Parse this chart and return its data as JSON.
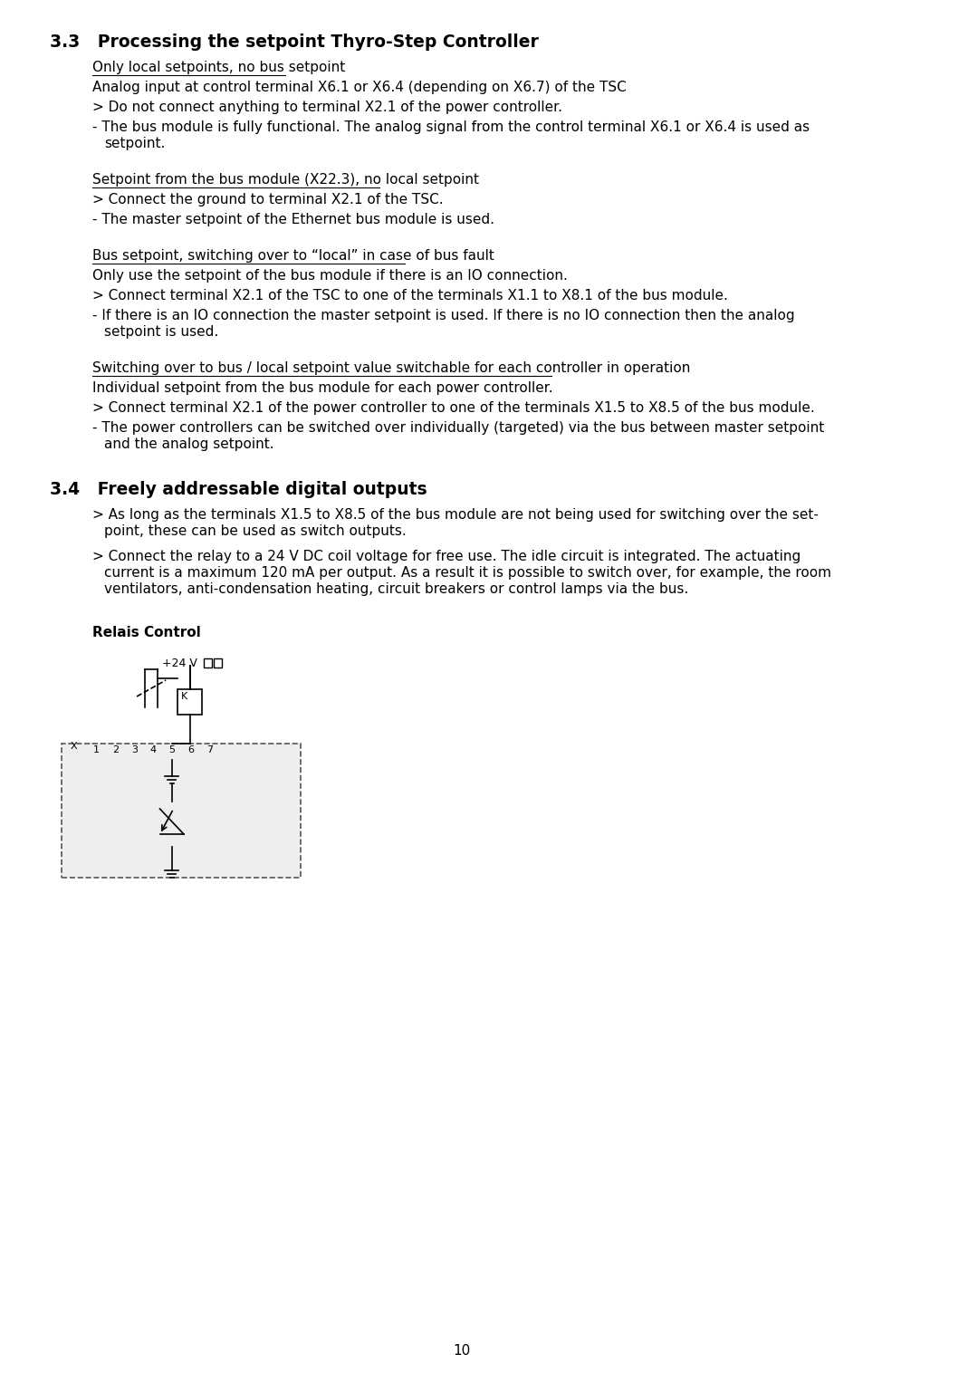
{
  "bg_color": "#ffffff",
  "page_number": "10",
  "section_33_title": "3.3   Processing the setpoint Thyro-Step Controller",
  "section_33_blocks": [
    {
      "heading": "Only local setpoints, no bus setpoint",
      "lines": [
        {
          "type": "plain",
          "text": "Analog input at control terminal X6.1 or X6.4 (depending on X6.7) of the TSC"
        },
        {
          "type": "gt",
          "text": "> Do not connect anything to terminal X2.1 of the power controller."
        },
        {
          "type": "dash",
          "text": "- The bus module is fully functional. The analog signal from the control terminal X6.1 or X6.4 is used as\n  setpoint."
        }
      ]
    },
    {
      "heading": "Setpoint from the bus module (X22.3), no local setpoint",
      "lines": [
        {
          "type": "gt",
          "text": "> Connect the ground to terminal X2.1 of the TSC."
        },
        {
          "type": "dash",
          "text": "- The master setpoint of the Ethernet bus module is used."
        }
      ]
    },
    {
      "heading": "Bus setpoint, switching over to “local” in case of bus fault",
      "lines": [
        {
          "type": "plain",
          "text": "Only use the setpoint of the bus module if there is an IO connection."
        },
        {
          "type": "gt",
          "text": "> Connect terminal X2.1 of the TSC to one of the terminals X1.1 to X8.1 of the bus module."
        },
        {
          "type": "dash",
          "text": "- If there is an IO connection the master setpoint is used. If there is no IO connection then the analog\n  setpoint is used."
        }
      ]
    },
    {
      "heading": "Switching over to bus / local setpoint value switchable for each controller in operation",
      "lines": [
        {
          "type": "plain",
          "text": "Individual setpoint from the bus module for each power controller."
        },
        {
          "type": "gt",
          "text": "> Connect terminal X2.1 of the power controller to one of the terminals X1.5 to X8.5 of the bus module."
        },
        {
          "type": "dash",
          "text": "- The power controllers can be switched over individually (targeted) via the bus between master setpoint\n  and the analog setpoint."
        }
      ]
    }
  ],
  "section_34_title": "3.4   Freely addressable digital outputs",
  "section_34_lines": [
    {
      "type": "gt",
      "text": "> As long as the terminals X1.5 to X8.5 of the bus module are not being used for switching over the set-\n  point, these can be used as switch outputs."
    },
    {
      "type": "gt",
      "text": "> Connect the relay to a 24 V DC coil voltage for free use. The idle circuit is integrated. The actuating\n  current is a maximum 120 mA per output. As a result it is possible to switch over, for example, the room\n  ventilators, anti-condensation heating, circuit breakers or control lamps via the bus."
    }
  ],
  "relais_label": "Relais Control",
  "terminal_labels": [
    "X",
    "1",
    "2",
    "3",
    "4",
    "5",
    "6",
    "7"
  ],
  "voltage_label": "+24 V"
}
